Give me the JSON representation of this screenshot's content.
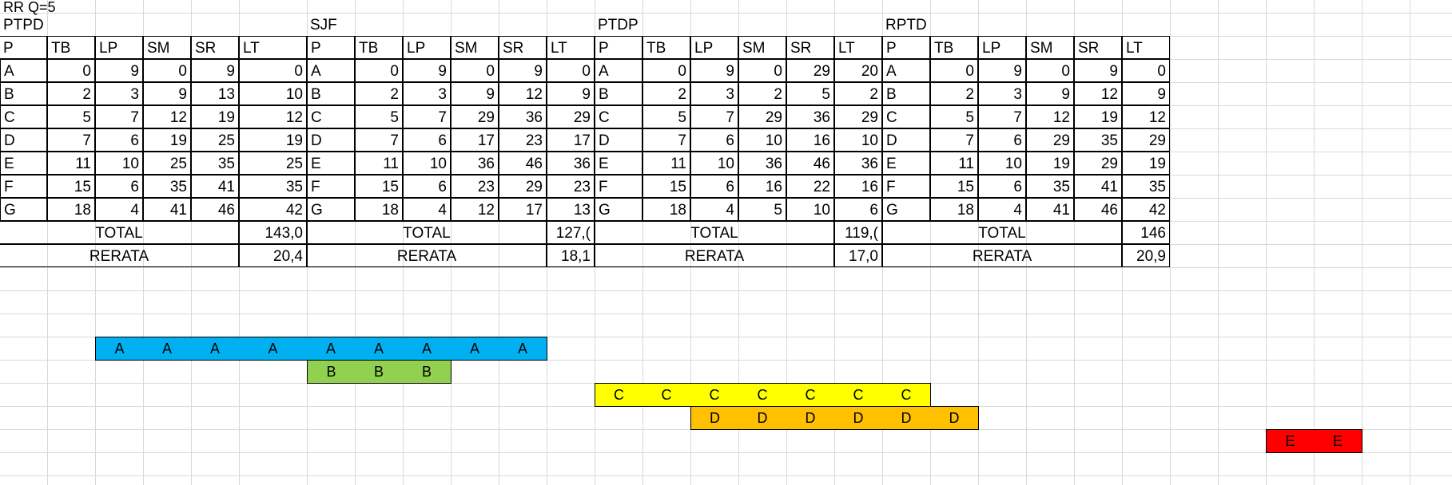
{
  "sheet_label": "RR Q=5",
  "headers": [
    "P",
    "TB",
    "LP",
    "SM",
    "SR",
    "LT"
  ],
  "tables": [
    {
      "title": "PTPD",
      "rows": [
        [
          "A",
          "0",
          "9",
          "0",
          "9",
          "0"
        ],
        [
          "B",
          "2",
          "3",
          "9",
          "13",
          "10"
        ],
        [
          "C",
          "5",
          "7",
          "12",
          "19",
          "12"
        ],
        [
          "D",
          "7",
          "6",
          "19",
          "25",
          "19"
        ],
        [
          "E",
          "11",
          "10",
          "25",
          "35",
          "25"
        ],
        [
          "F",
          "15",
          "6",
          "35",
          "41",
          "35"
        ],
        [
          "G",
          "18",
          "4",
          "41",
          "46",
          "42"
        ]
      ],
      "total_label": "TOTAL",
      "total_value": "143,0",
      "rerata_label": "RERATA",
      "rerata_value": "20,4"
    },
    {
      "title": "SJF",
      "rows": [
        [
          "A",
          "0",
          "9",
          "0",
          "9",
          "0"
        ],
        [
          "B",
          "2",
          "3",
          "9",
          "12",
          "9"
        ],
        [
          "C",
          "5",
          "7",
          "29",
          "36",
          "29"
        ],
        [
          "D",
          "7",
          "6",
          "17",
          "23",
          "17"
        ],
        [
          "E",
          "11",
          "10",
          "36",
          "46",
          "36"
        ],
        [
          "F",
          "15",
          "6",
          "23",
          "29",
          "23"
        ],
        [
          "G",
          "18",
          "4",
          "12",
          "17",
          "13"
        ]
      ],
      "total_label": "TOTAL",
      "total_value": "127,(",
      "rerata_label": "RERATA",
      "rerata_value": "18,1"
    },
    {
      "title": "PTDP",
      "rows": [
        [
          "A",
          "0",
          "9",
          "0",
          "29",
          "20"
        ],
        [
          "B",
          "2",
          "3",
          "2",
          "5",
          "2"
        ],
        [
          "C",
          "5",
          "7",
          "29",
          "36",
          "29"
        ],
        [
          "D",
          "7",
          "6",
          "10",
          "16",
          "10"
        ],
        [
          "E",
          "11",
          "10",
          "36",
          "46",
          "36"
        ],
        [
          "F",
          "15",
          "6",
          "16",
          "22",
          "16"
        ],
        [
          "G",
          "18",
          "4",
          "5",
          "10",
          "6"
        ]
      ],
      "total_label": "TOTAL",
      "total_value": "119,(",
      "rerata_label": "RERATA",
      "rerata_value": "17,0"
    },
    {
      "title": "RPTD",
      "rows": [
        [
          "A",
          "0",
          "9",
          "0",
          "9",
          "0"
        ],
        [
          "B",
          "2",
          "3",
          "9",
          "12",
          "9"
        ],
        [
          "C",
          "5",
          "7",
          "12",
          "19",
          "12"
        ],
        [
          "D",
          "7",
          "6",
          "29",
          "35",
          "29"
        ],
        [
          "E",
          "11",
          "10",
          "19",
          "29",
          "19"
        ],
        [
          "F",
          "15",
          "6",
          "35",
          "41",
          "35"
        ],
        [
          "G",
          "18",
          "4",
          "41",
          "46",
          "42"
        ]
      ],
      "total_label": "TOTAL",
      "total_value": "146",
      "rerata_label": "RERATA",
      "rerata_value": "20,9"
    }
  ],
  "gantt": {
    "colors": {
      "A": "#00b0f0",
      "B": "#92d050",
      "C": "#ffff00",
      "D": "#ffc000",
      "E": "#ff0000"
    },
    "rows": [
      {
        "label": "A",
        "start_col": 2,
        "count": 9
      },
      {
        "label": "B",
        "start_col": 6,
        "count": 3
      },
      {
        "label": "C",
        "start_col": 12,
        "count": 7
      },
      {
        "label": "D",
        "start_col": 14,
        "count": 6
      },
      {
        "label": "E",
        "start_col": 26,
        "count": 2
      }
    ]
  }
}
